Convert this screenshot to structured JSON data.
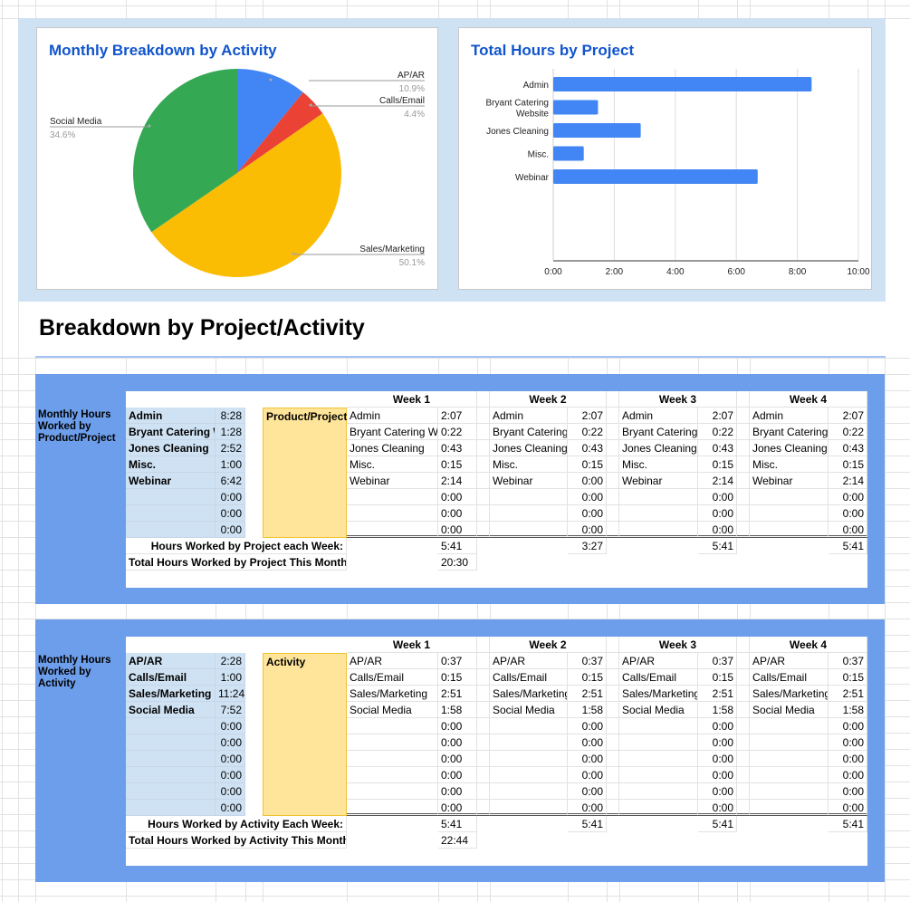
{
  "sheet_title": "Breakdown by Project/Activity",
  "colors": {
    "frame_blue": "#6d9eeb",
    "summary_blue": "#cfe2f3",
    "category_yellow": "#ffe599",
    "chart_title": "#1155cc",
    "bar": "#4285f4"
  },
  "chart_data": [
    {
      "type": "pie",
      "title": "Monthly Breakdown by Activity",
      "slices": [
        {
          "label": "AP/AR",
          "value": 10.9,
          "display": "10.9%",
          "color": "#4285f4"
        },
        {
          "label": "Calls/Email",
          "value": 4.4,
          "display": "4.4%",
          "color": "#ea4335"
        },
        {
          "label": "Sales/Marketing",
          "value": 50.1,
          "display": "50.1%",
          "color": "#fbbc04"
        },
        {
          "label": "Social Media",
          "value": 34.6,
          "display": "34.6%",
          "color": "#34a853"
        }
      ]
    },
    {
      "type": "bar",
      "orientation": "horizontal",
      "title": "Total Hours by Project",
      "categories": [
        "Admin",
        "Bryant Catering Website",
        "Jones Cleaning",
        "Misc.",
        "Webinar"
      ],
      "category_lines": [
        [
          "Admin"
        ],
        [
          "Bryant Catering",
          "Website"
        ],
        [
          "Jones Cleaning"
        ],
        [
          "Misc."
        ],
        [
          "Webinar"
        ]
      ],
      "values_hours": [
        8.467,
        1.467,
        2.867,
        1.0,
        6.7
      ],
      "xlim": [
        0,
        10
      ],
      "x_ticks": [
        "0:00",
        "2:00",
        "4:00",
        "6:00",
        "8:00",
        "10:00"
      ],
      "grid": true
    }
  ],
  "sections": [
    {
      "label": "Monthly Hours Worked by Product/Project",
      "summary": [
        [
          "Admin",
          "8:28"
        ],
        [
          "Bryant Catering Website",
          "1:28"
        ],
        [
          "Jones Cleaning",
          "2:52"
        ],
        [
          "Misc.",
          "1:00"
        ],
        [
          "Webinar",
          "6:42"
        ],
        [
          "",
          "0:00"
        ],
        [
          "",
          "0:00"
        ],
        [
          "",
          "0:00"
        ]
      ],
      "category_label": "Product/Project",
      "weeks": [
        {
          "header": "Week 1",
          "rows": [
            [
              "Admin",
              "2:07"
            ],
            [
              "Bryant Catering Website",
              "0:22"
            ],
            [
              "Jones Cleaning",
              "0:43"
            ],
            [
              "Misc.",
              "0:15"
            ],
            [
              "Webinar",
              "2:14"
            ],
            [
              "",
              "0:00"
            ],
            [
              "",
              "0:00"
            ],
            [
              "",
              "0:00"
            ]
          ]
        },
        {
          "header": "Week 2",
          "rows": [
            [
              "Admin",
              "2:07"
            ],
            [
              "Bryant Catering Website",
              "0:22"
            ],
            [
              "Jones Cleaning",
              "0:43"
            ],
            [
              "Misc.",
              "0:15"
            ],
            [
              "Webinar",
              "0:00"
            ],
            [
              "",
              "0:00"
            ],
            [
              "",
              "0:00"
            ],
            [
              "",
              "0:00"
            ]
          ]
        },
        {
          "header": "Week 3",
          "rows": [
            [
              "Admin",
              "2:07"
            ],
            [
              "Bryant Catering Website",
              "0:22"
            ],
            [
              "Jones Cleaning",
              "0:43"
            ],
            [
              "Misc.",
              "0:15"
            ],
            [
              "Webinar",
              "2:14"
            ],
            [
              "",
              "0:00"
            ],
            [
              "",
              "0:00"
            ],
            [
              "",
              "0:00"
            ]
          ]
        },
        {
          "header": "Week 4",
          "rows": [
            [
              "Admin",
              "2:07"
            ],
            [
              "Bryant Catering Website",
              "0:22"
            ],
            [
              "Jones Cleaning",
              "0:43"
            ],
            [
              "Misc.",
              "0:15"
            ],
            [
              "Webinar",
              "2:14"
            ],
            [
              "",
              "0:00"
            ],
            [
              "",
              "0:00"
            ],
            [
              "",
              "0:00"
            ]
          ]
        }
      ],
      "weekly_total_label": "Hours Worked by Project each Week:",
      "weekly_totals": [
        "5:41",
        "3:27",
        "5:41",
        "5:41"
      ],
      "month_total_label": "Total Hours Worked  by Project This Month:",
      "month_total": "20:30"
    },
    {
      "label": "Monthly Hours Worked by Activity",
      "summary": [
        [
          "AP/AR",
          "2:28"
        ],
        [
          "Calls/Email",
          "1:00"
        ],
        [
          "Sales/Marketing",
          "11:24"
        ],
        [
          "Social Media",
          "7:52"
        ],
        [
          "",
          "0:00"
        ],
        [
          "",
          "0:00"
        ],
        [
          "",
          "0:00"
        ],
        [
          "",
          "0:00"
        ],
        [
          "",
          "0:00"
        ],
        [
          "",
          "0:00"
        ]
      ],
      "category_label": "Activity",
      "weeks": [
        {
          "header": "Week 1",
          "rows": [
            [
              "AP/AR",
              "0:37"
            ],
            [
              "Calls/Email",
              "0:15"
            ],
            [
              "Sales/Marketing",
              "2:51"
            ],
            [
              "Social Media",
              "1:58"
            ],
            [
              "",
              "0:00"
            ],
            [
              "",
              "0:00"
            ],
            [
              "",
              "0:00"
            ],
            [
              "",
              "0:00"
            ],
            [
              "",
              "0:00"
            ],
            [
              "",
              "0:00"
            ]
          ]
        },
        {
          "header": "Week 2",
          "rows": [
            [
              "AP/AR",
              "0:37"
            ],
            [
              "Calls/Email",
              "0:15"
            ],
            [
              "Sales/Marketing",
              "2:51"
            ],
            [
              "Social Media",
              "1:58"
            ],
            [
              "",
              "0:00"
            ],
            [
              "",
              "0:00"
            ],
            [
              "",
              "0:00"
            ],
            [
              "",
              "0:00"
            ],
            [
              "",
              "0:00"
            ],
            [
              "",
              "0:00"
            ]
          ]
        },
        {
          "header": "Week 3",
          "rows": [
            [
              "AP/AR",
              "0:37"
            ],
            [
              "Calls/Email",
              "0:15"
            ],
            [
              "Sales/Marketing",
              "2:51"
            ],
            [
              "Social Media",
              "1:58"
            ],
            [
              "",
              "0:00"
            ],
            [
              "",
              "0:00"
            ],
            [
              "",
              "0:00"
            ],
            [
              "",
              "0:00"
            ],
            [
              "",
              "0:00"
            ],
            [
              "",
              "0:00"
            ]
          ]
        },
        {
          "header": "Week 4",
          "rows": [
            [
              "AP/AR",
              "0:37"
            ],
            [
              "Calls/Email",
              "0:15"
            ],
            [
              "Sales/Marketing",
              "2:51"
            ],
            [
              "Social Media",
              "1:58"
            ],
            [
              "",
              "0:00"
            ],
            [
              "",
              "0:00"
            ],
            [
              "",
              "0:00"
            ],
            [
              "",
              "0:00"
            ],
            [
              "",
              "0:00"
            ],
            [
              "",
              "0:00"
            ]
          ]
        }
      ],
      "weekly_total_label": "Hours Worked by Activity Each Week:",
      "weekly_totals": [
        "5:41",
        "5:41",
        "5:41",
        "5:41"
      ],
      "month_total_label": "Total Hours Worked by Activity This Month:",
      "month_total": "22:44"
    }
  ]
}
